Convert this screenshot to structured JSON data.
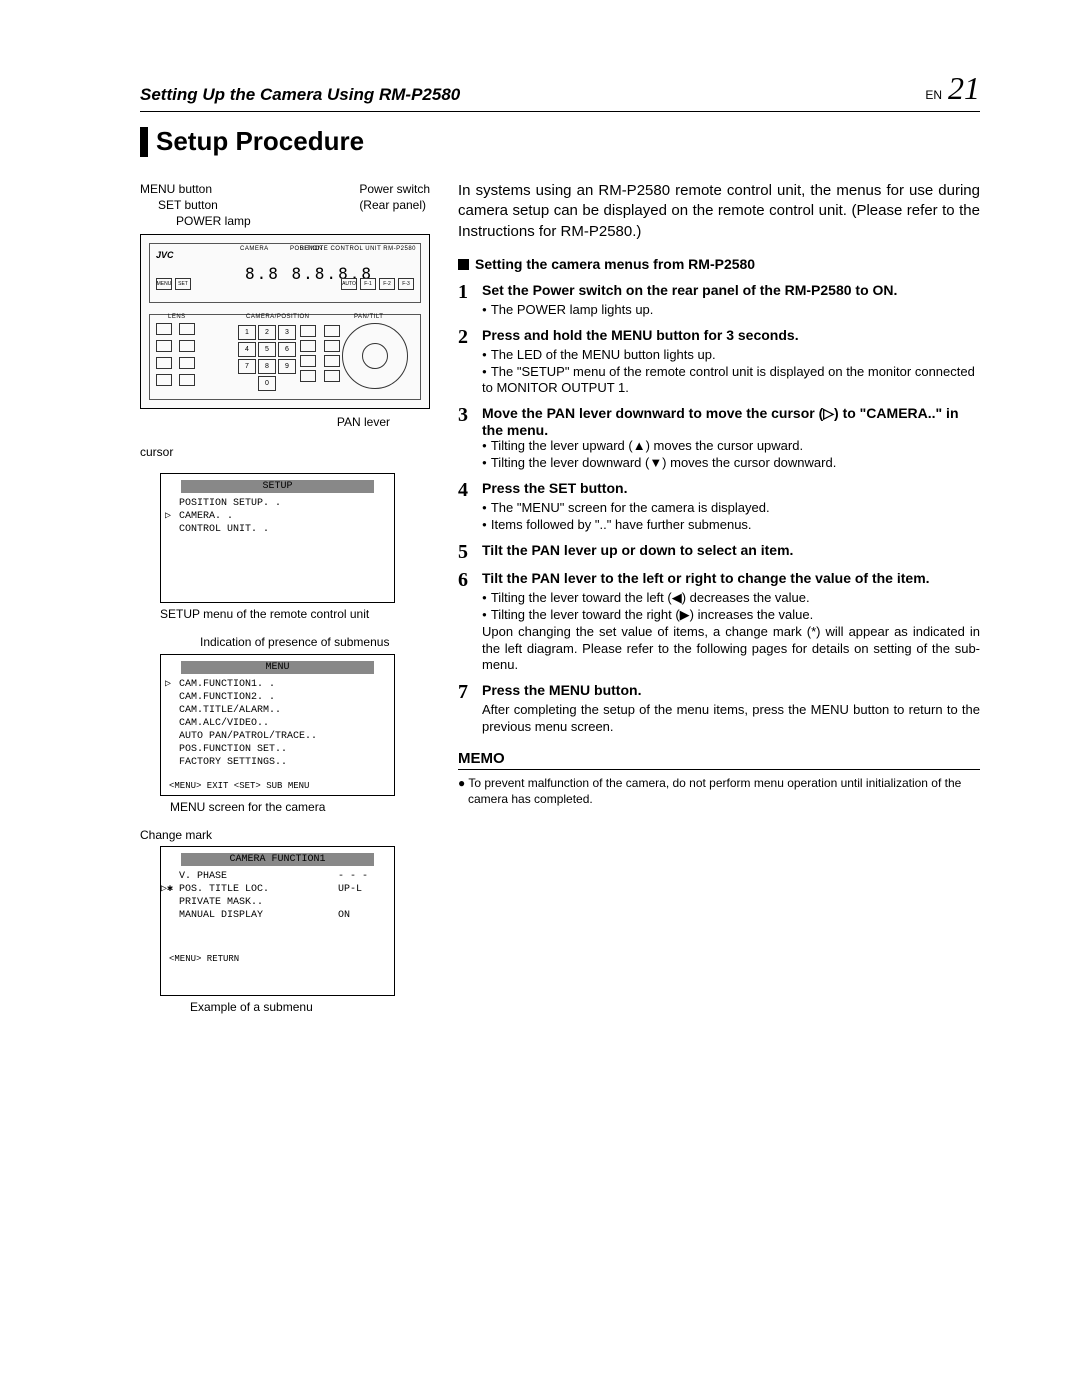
{
  "header": {
    "breadcrumb": "Setting Up the Camera Using RM-P2580",
    "lang": "EN",
    "page": "21"
  },
  "title": "Setup Procedure",
  "remote_labels": {
    "menu_btn": "MENU button",
    "set_btn": "SET button",
    "power_lamp": "POWER lamp",
    "power_sw": "Power switch",
    "rear_panel": "(Rear panel)",
    "pan_lever": "PAN lever",
    "brand": "JVC",
    "rc_model": "REMOTE CONTROL UNIT  RM-P2580",
    "seg_display": "8.8  8.8.8.8"
  },
  "keypad": [
    "1",
    "2",
    "3",
    "4",
    "5",
    "6",
    "7",
    "8",
    "9",
    "0"
  ],
  "right_small_btns": [
    "AUTO",
    "F-1",
    "F-2",
    "F-3"
  ],
  "left_small_btns": [
    "MENU",
    "SET"
  ],
  "section_labels": {
    "lens": "LENS",
    "camera": "CAMERA/POSITION",
    "pantilt": "PAN/TILT",
    "camera_top": "CAMERA",
    "position_top": "POSITION"
  },
  "setup_menu": {
    "cursor_label": "cursor",
    "title": "SETUP",
    "lines": [
      "POSITION SETUP. .",
      "CAMERA. .",
      "CONTROL UNIT. ."
    ],
    "caption": "SETUP menu of the remote control unit"
  },
  "submenu_indicator": "Indication of presence of submenus",
  "camera_menu": {
    "title": "MENU",
    "lines": [
      "CAM.FUNCTION1. .",
      "CAM.FUNCTION2. .",
      "CAM.TITLE/ALARM..",
      "CAM.ALC/VIDEO..",
      "AUTO PAN/PATROL/TRACE..",
      "POS.FUNCTION SET..",
      "FACTORY SETTINGS.."
    ],
    "footer": "<MENU> EXIT  <SET> SUB  MENU",
    "caption": "MENU screen for the camera"
  },
  "change_mark_label": "Change mark",
  "func_menu": {
    "title": "CAMERA  FUNCTION1",
    "rows": [
      {
        "l": "V. PHASE",
        "r": "- - -"
      },
      {
        "l": "POS. TITLE  LOC.",
        "r": "UP-L",
        "mark": true
      },
      {
        "l": "PRIVATE  MASK..",
        "r": ""
      },
      {
        "l": "MANUAL  DISPLAY",
        "r": "ON"
      }
    ],
    "footer": "<MENU> RETURN",
    "caption": "Example of a submenu"
  },
  "intro": "In systems using an RM-P2580 remote control unit, the menus for use during camera setup can be displayed on the remote control unit. (Please refer to the Instructions for RM-P2580.)",
  "section_heading": "Setting the camera menus from RM-P2580",
  "steps": [
    {
      "n": "1",
      "t": "Set the Power switch on the rear panel of the RM-P2580 to ON.",
      "body": [
        "The POWER lamp lights up."
      ]
    },
    {
      "n": "2",
      "t": "Press and hold the MENU button for 3 seconds.",
      "body": [
        "The LED of the MENU button lights up.",
        "The \"SETUP\" menu of the remote control unit is displayed on the monitor connected to MONITOR OUTPUT 1."
      ]
    },
    {
      "n": "3",
      "t": "Move the PAN lever downward to move the cursor (▷) to \"CAMERA..\" in the menu.",
      "body": [
        "Tilting the lever upward (▲) moves the cursor upward.",
        "Tilting the lever downward (▼) moves the cursor downward."
      ]
    },
    {
      "n": "4",
      "t": "Press the SET button.",
      "body": [
        "The \"MENU\" screen for the camera is displayed.",
        "Items followed by \"..\" have further submenus."
      ]
    },
    {
      "n": "5",
      "t": "Tilt the PAN lever up or down to select an item.",
      "body": []
    },
    {
      "n": "6",
      "t": "Tilt the PAN lever to the left or right to change the value of the item.",
      "body": [
        "Tilting the lever toward the left (◀) decreases the value.",
        "Tilting the lever toward the right (▶) increases the value."
      ],
      "after": "Upon changing the set value of items, a change mark (*) will appear as indicated in the left diagram. Please refer to the following pages for details on setting of the sub-menu."
    },
    {
      "n": "7",
      "t": "Press the MENU button.",
      "after": "After completing the setup of the menu items, press the MENU button to return to the previous menu screen."
    }
  ],
  "memo": {
    "heading": "MEMO",
    "body": "To prevent malfunction of the camera, do not perform menu operation until initialization of the camera has completed."
  },
  "colors": {
    "title_bar_bg": "#888888",
    "text": "#000000"
  }
}
